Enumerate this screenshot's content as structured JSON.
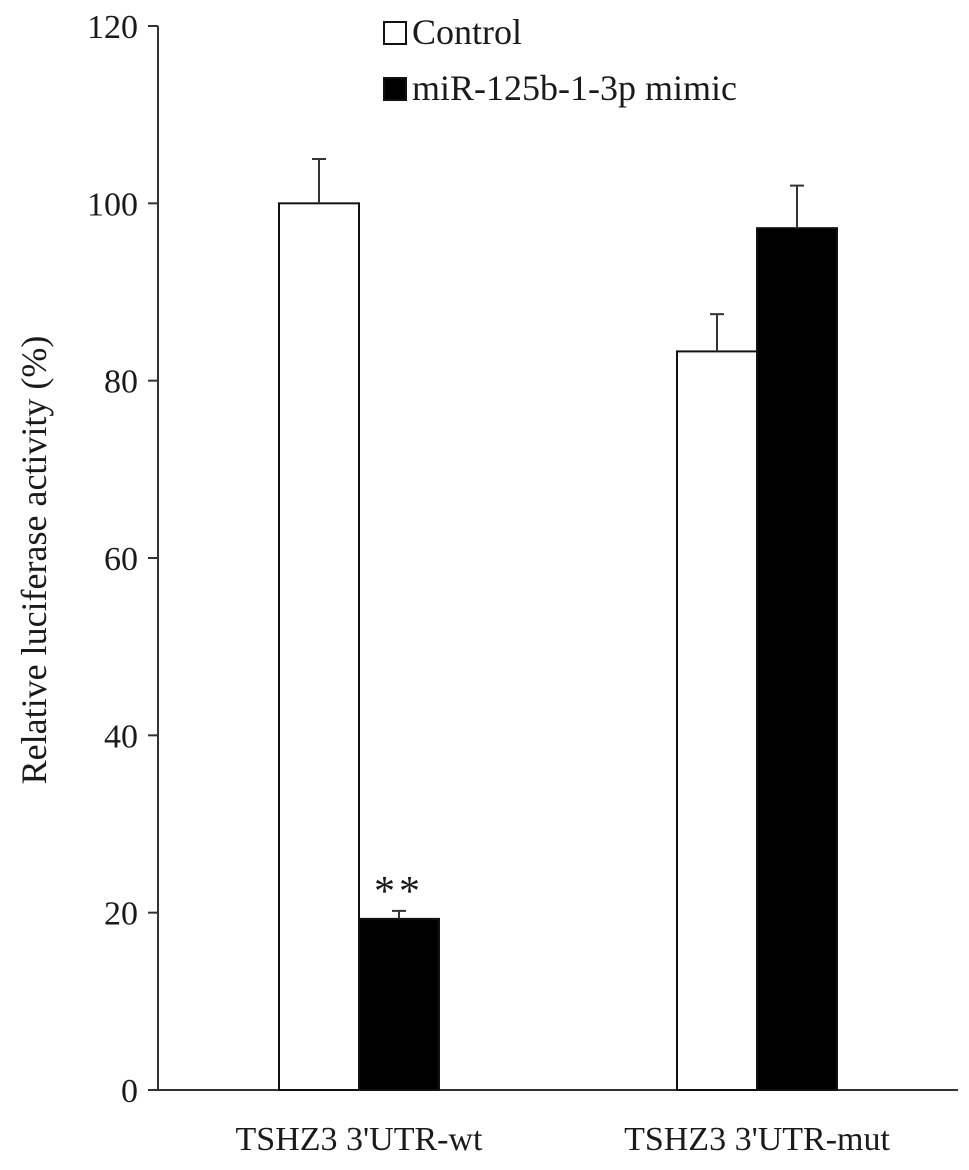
{
  "chart_data": {
    "type": "bar",
    "title": "",
    "xlabel": "",
    "ylabel": "Relative luciferase activity (%)",
    "ylim": [
      0,
      120
    ],
    "yticks": [
      0,
      20,
      40,
      60,
      80,
      100,
      120
    ],
    "grid": false,
    "legend_position": "top",
    "categories": [
      "TSHZ3 3'UTR-wt",
      "TSHZ3 3'UTR-mut"
    ],
    "series": [
      {
        "name": "Control",
        "color": "#ffffff",
        "values": [
          100,
          83.3
        ],
        "errors": [
          5.0,
          4.2
        ]
      },
      {
        "name": "miR-125b-1-3p mimic",
        "color": "#000000",
        "values": [
          19.3,
          97.2
        ],
        "errors": [
          0.9,
          4.8
        ]
      }
    ],
    "annotations": [
      {
        "text": "**",
        "category_index": 0,
        "series_index": 1
      }
    ]
  }
}
